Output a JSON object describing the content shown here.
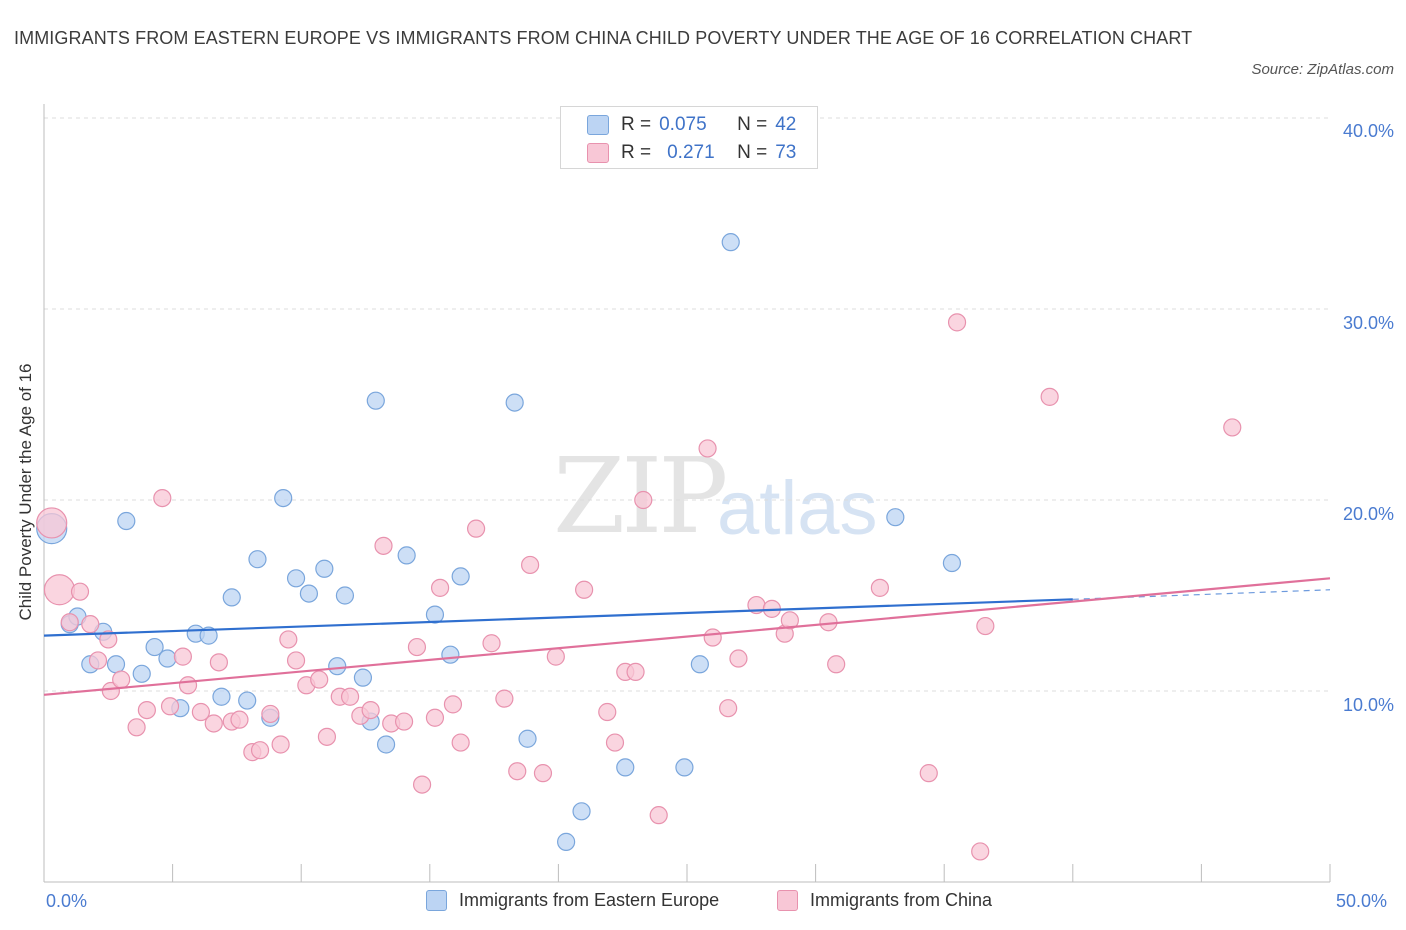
{
  "header": {
    "title": "IMMIGRANTS FROM EASTERN EUROPE VS IMMIGRANTS FROM CHINA CHILD POVERTY UNDER THE AGE OF 16 CORRELATION CHART",
    "source": "Source: ZipAtlas.com"
  },
  "watermark": {
    "zip": "ZIP",
    "atlas": "atlas"
  },
  "legend": {
    "rows": [
      {
        "r_label": "R =",
        "r_value": "0.075",
        "n_label": "N =",
        "n_value": "42"
      },
      {
        "r_label": "R =",
        "r_value": "0.271",
        "n_label": "N =",
        "n_value": "73"
      }
    ]
  },
  "colors": {
    "blue_fill": "#bcd4f3",
    "blue_stroke": "#7aa6dc",
    "blue_line": "#2f6fcf",
    "pink_fill": "#f8c7d6",
    "pink_stroke": "#e892ae",
    "pink_line": "#e0709a",
    "tick_text": "#4a7bd0",
    "grid": "#dcdcdc"
  },
  "chart_data": {
    "type": "scatter",
    "title": "IMMIGRANTS FROM EASTERN EUROPE VS IMMIGRANTS FROM CHINA CHILD POVERTY UNDER THE AGE OF 16 CORRELATION CHART",
    "xlabel": "",
    "ylabel": "Child Poverty Under the Age of 16",
    "xlim": [
      0,
      50
    ],
    "ylim": [
      0,
      40
    ],
    "x_tick_labels": [
      "0.0%",
      "50.0%"
    ],
    "y_ticks": [
      10,
      20,
      30,
      40
    ],
    "y_tick_labels": [
      "10.0%",
      "20.0%",
      "30.0%",
      "40.0%"
    ],
    "grid": true,
    "legend_position": "top-center",
    "series": [
      {
        "name": "Immigrants from Eastern Europe",
        "R": 0.075,
        "N": 42,
        "trend": {
          "x": [
            0,
            40
          ],
          "y": [
            12.9,
            14.8
          ],
          "dashed_extension": {
            "x": [
              40,
              50
            ],
            "y": [
              14.8,
              15.3
            ]
          }
        },
        "points": [
          {
            "x": 0.3,
            "y": 18.5,
            "big": true
          },
          {
            "x": 1.0,
            "y": 13.5
          },
          {
            "x": 1.3,
            "y": 13.9
          },
          {
            "x": 1.8,
            "y": 11.4
          },
          {
            "x": 2.3,
            "y": 13.1
          },
          {
            "x": 2.8,
            "y": 11.4
          },
          {
            "x": 3.2,
            "y": 18.9
          },
          {
            "x": 3.8,
            "y": 10.9
          },
          {
            "x": 4.3,
            "y": 12.3
          },
          {
            "x": 4.8,
            "y": 11.7
          },
          {
            "x": 5.3,
            "y": 9.1
          },
          {
            "x": 5.9,
            "y": 13.0
          },
          {
            "x": 6.4,
            "y": 12.9
          },
          {
            "x": 6.9,
            "y": 9.7
          },
          {
            "x": 7.3,
            "y": 14.9
          },
          {
            "x": 7.9,
            "y": 9.5
          },
          {
            "x": 8.3,
            "y": 16.9
          },
          {
            "x": 8.8,
            "y": 8.6
          },
          {
            "x": 9.3,
            "y": 20.1
          },
          {
            "x": 9.8,
            "y": 15.9
          },
          {
            "x": 10.3,
            "y": 15.1
          },
          {
            "x": 10.9,
            "y": 16.4
          },
          {
            "x": 11.4,
            "y": 11.3
          },
          {
            "x": 11.7,
            "y": 15.0
          },
          {
            "x": 12.4,
            "y": 10.7
          },
          {
            "x": 12.7,
            "y": 8.4
          },
          {
            "x": 12.9,
            "y": 25.2
          },
          {
            "x": 13.3,
            "y": 7.2
          },
          {
            "x": 14.1,
            "y": 17.1
          },
          {
            "x": 15.2,
            "y": 14.0
          },
          {
            "x": 15.8,
            "y": 11.9
          },
          {
            "x": 16.2,
            "y": 16.0
          },
          {
            "x": 18.3,
            "y": 25.1
          },
          {
            "x": 18.8,
            "y": 7.5
          },
          {
            "x": 20.3,
            "y": 2.1
          },
          {
            "x": 20.9,
            "y": 3.7
          },
          {
            "x": 22.6,
            "y": 6.0
          },
          {
            "x": 24.9,
            "y": 6.0
          },
          {
            "x": 25.5,
            "y": 11.4
          },
          {
            "x": 26.7,
            "y": 33.5
          },
          {
            "x": 33.1,
            "y": 19.1
          },
          {
            "x": 35.3,
            "y": 16.7
          }
        ]
      },
      {
        "name": "Immigrants from China",
        "R": 0.271,
        "N": 73,
        "trend": {
          "x": [
            0,
            50
          ],
          "y": [
            9.8,
            15.9
          ]
        },
        "points": [
          {
            "x": 0.3,
            "y": 18.8,
            "big": true
          },
          {
            "x": 0.6,
            "y": 15.3,
            "big": true
          },
          {
            "x": 1.0,
            "y": 13.6
          },
          {
            "x": 1.4,
            "y": 15.2
          },
          {
            "x": 1.8,
            "y": 13.5
          },
          {
            "x": 2.1,
            "y": 11.6
          },
          {
            "x": 2.5,
            "y": 12.7
          },
          {
            "x": 2.6,
            "y": 10.0
          },
          {
            "x": 3.0,
            "y": 10.6
          },
          {
            "x": 3.6,
            "y": 8.1
          },
          {
            "x": 4.0,
            "y": 9.0
          },
          {
            "x": 4.6,
            "y": 20.1
          },
          {
            "x": 4.9,
            "y": 9.2
          },
          {
            "x": 5.4,
            "y": 11.8
          },
          {
            "x": 5.6,
            "y": 10.3
          },
          {
            "x": 6.1,
            "y": 8.9
          },
          {
            "x": 6.6,
            "y": 8.3
          },
          {
            "x": 6.8,
            "y": 11.5
          },
          {
            "x": 7.3,
            "y": 8.4
          },
          {
            "x": 7.6,
            "y": 8.5
          },
          {
            "x": 8.1,
            "y": 6.8
          },
          {
            "x": 8.4,
            "y": 6.9
          },
          {
            "x": 8.8,
            "y": 8.8
          },
          {
            "x": 9.2,
            "y": 7.2
          },
          {
            "x": 9.5,
            "y": 12.7
          },
          {
            "x": 9.8,
            "y": 11.6
          },
          {
            "x": 10.2,
            "y": 10.3
          },
          {
            "x": 10.7,
            "y": 10.6
          },
          {
            "x": 11.0,
            "y": 7.6
          },
          {
            "x": 11.5,
            "y": 9.7
          },
          {
            "x": 11.9,
            "y": 9.7
          },
          {
            "x": 12.3,
            "y": 8.7
          },
          {
            "x": 12.7,
            "y": 9.0
          },
          {
            "x": 13.2,
            "y": 17.6
          },
          {
            "x": 13.5,
            "y": 8.3
          },
          {
            "x": 14.0,
            "y": 8.4
          },
          {
            "x": 14.5,
            "y": 12.3
          },
          {
            "x": 14.7,
            "y": 5.1
          },
          {
            "x": 15.2,
            "y": 8.6
          },
          {
            "x": 15.4,
            "y": 15.4
          },
          {
            "x": 15.9,
            "y": 9.3
          },
          {
            "x": 16.2,
            "y": 7.3
          },
          {
            "x": 16.8,
            "y": 18.5
          },
          {
            "x": 17.4,
            "y": 12.5
          },
          {
            "x": 17.9,
            "y": 9.6
          },
          {
            "x": 18.4,
            "y": 5.8
          },
          {
            "x": 18.9,
            "y": 16.6
          },
          {
            "x": 19.4,
            "y": 5.7
          },
          {
            "x": 19.9,
            "y": 11.8
          },
          {
            "x": 21.0,
            "y": 15.3
          },
          {
            "x": 21.9,
            "y": 8.9
          },
          {
            "x": 22.2,
            "y": 7.3
          },
          {
            "x": 22.6,
            "y": 11.0
          },
          {
            "x": 23.0,
            "y": 11.0
          },
          {
            "x": 23.3,
            "y": 20.0
          },
          {
            "x": 23.9,
            "y": 3.5
          },
          {
            "x": 25.8,
            "y": 22.7
          },
          {
            "x": 26.0,
            "y": 12.8
          },
          {
            "x": 26.6,
            "y": 9.1
          },
          {
            "x": 27.0,
            "y": 11.7
          },
          {
            "x": 27.7,
            "y": 14.5
          },
          {
            "x": 28.3,
            "y": 14.3
          },
          {
            "x": 28.8,
            "y": 13.0
          },
          {
            "x": 29.0,
            "y": 13.7
          },
          {
            "x": 30.5,
            "y": 13.6
          },
          {
            "x": 30.8,
            "y": 11.4
          },
          {
            "x": 32.5,
            "y": 15.4
          },
          {
            "x": 34.4,
            "y": 5.7
          },
          {
            "x": 35.5,
            "y": 29.3
          },
          {
            "x": 36.4,
            "y": 1.6
          },
          {
            "x": 36.6,
            "y": 13.4
          },
          {
            "x": 39.1,
            "y": 25.4
          },
          {
            "x": 46.2,
            "y": 23.8
          }
        ]
      }
    ]
  }
}
